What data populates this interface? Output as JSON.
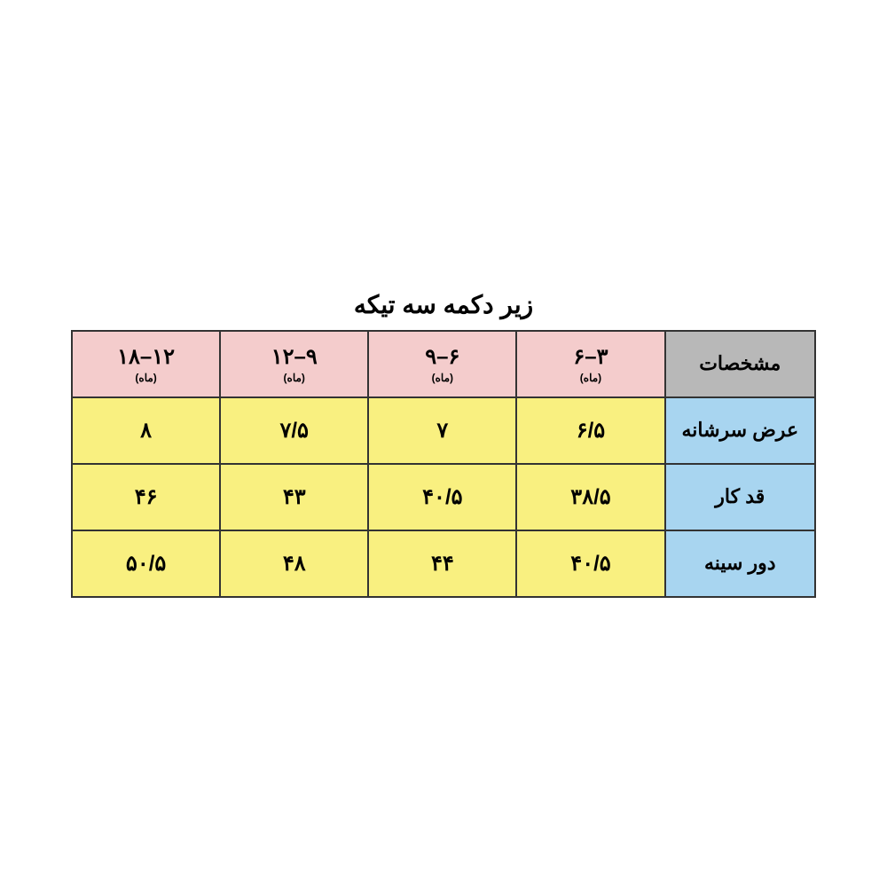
{
  "title": "زیر دکمه سه تیکه",
  "table": {
    "type": "table",
    "background_color": "#ffffff",
    "border_color": "#333333",
    "border_width": 2,
    "colors": {
      "spec_header_bg": "#b8b8b8",
      "size_header_bg": "#f4cccc",
      "row_label_bg": "#a8d5f0",
      "data_cell_bg": "#f9f080",
      "text_color": "#000000"
    },
    "fonts": {
      "title_fontsize": 28,
      "header_fontsize": 22,
      "size_main_fontsize": 24,
      "size_sub_fontsize": 12,
      "data_fontsize": 24,
      "font_weight": "bold"
    },
    "columns": {
      "spec_label": "مشخصات",
      "sizes": [
        {
          "main": "۳–۶",
          "sub": "(ماه)"
        },
        {
          "main": "۶–۹",
          "sub": "(ماه)"
        },
        {
          "main": "۹–۱۲",
          "sub": "(ماه)"
        },
        {
          "main": "۱۲–۱۸",
          "sub": "(ماه)"
        }
      ]
    },
    "rows": [
      {
        "label": "عرض سرشانه",
        "values": [
          "۶/۵",
          "۷",
          "۷/۵",
          "۸"
        ]
      },
      {
        "label": "قد کار",
        "values": [
          "۳۸/۵",
          "۴۰/۵",
          "۴۳",
          "۴۶"
        ]
      },
      {
        "label": "دور سینه",
        "values": [
          "۴۰/۵",
          "۴۴",
          "۴۸",
          "۵۰/۵"
        ]
      }
    ]
  }
}
